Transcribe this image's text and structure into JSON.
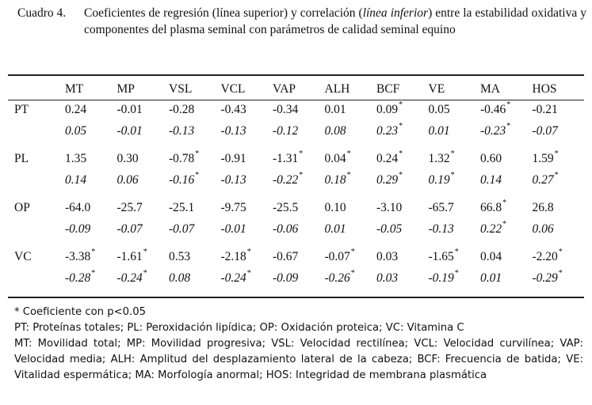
{
  "caption": {
    "label": "Cuadro 4.",
    "text_parts": [
      "Coeficientes de regresión (línea superior) y correlación (",
      "línea inferior",
      ") entre la estabilidad oxidativa y componentes del plasma seminal con parámetros de calidad seminal equino"
    ]
  },
  "table": {
    "columns": [
      "MT",
      "MP",
      "VSL",
      "VCL",
      "VAP",
      "ALH",
      "BCF",
      "VE",
      "MA",
      "HOS"
    ],
    "rows": [
      {
        "label": "PT",
        "regression": [
          [
            "0.24",
            ""
          ],
          [
            "-0.01",
            ""
          ],
          [
            "-0.28",
            ""
          ],
          [
            "-0.43",
            ""
          ],
          [
            "-0.34",
            ""
          ],
          [
            "0.01",
            ""
          ],
          [
            "0.09",
            "*"
          ],
          [
            "0.05",
            ""
          ],
          [
            "-0.46",
            "*"
          ],
          [
            "-0.21",
            ""
          ]
        ],
        "correlation": [
          [
            "0.05",
            ""
          ],
          [
            "-0.01",
            ""
          ],
          [
            "-0.13",
            ""
          ],
          [
            "-0.13",
            ""
          ],
          [
            "-0.12",
            ""
          ],
          [
            "0.08",
            ""
          ],
          [
            "0.23",
            "*"
          ],
          [
            "0.01",
            ""
          ],
          [
            "-0.23",
            "*"
          ],
          [
            "-0.07",
            ""
          ]
        ]
      },
      {
        "label": "PL",
        "regression": [
          [
            "1.35",
            ""
          ],
          [
            "0.30",
            ""
          ],
          [
            "-0.78",
            "*"
          ],
          [
            "-0.91",
            ""
          ],
          [
            "-1.31",
            "*"
          ],
          [
            "0.04",
            "*"
          ],
          [
            "0.24",
            "*"
          ],
          [
            "1.32",
            "*"
          ],
          [
            "0.60",
            ""
          ],
          [
            "1.59",
            "*"
          ]
        ],
        "correlation": [
          [
            "0.14",
            ""
          ],
          [
            "0.06",
            ""
          ],
          [
            "-0.16",
            "*"
          ],
          [
            "-0.13",
            ""
          ],
          [
            "-0.22",
            "*"
          ],
          [
            "0.18",
            "*"
          ],
          [
            "0.29",
            "*"
          ],
          [
            "0.19",
            "*"
          ],
          [
            "0.14",
            ""
          ],
          [
            "0.27",
            "*"
          ]
        ]
      },
      {
        "label": "OP",
        "regression": [
          [
            "-64.0",
            ""
          ],
          [
            "-25.7",
            ""
          ],
          [
            "-25.1",
            ""
          ],
          [
            "-9.75",
            ""
          ],
          [
            "-25.5",
            ""
          ],
          [
            "0.10",
            ""
          ],
          [
            "-3.10",
            ""
          ],
          [
            "-65.7",
            ""
          ],
          [
            "66.8",
            "*"
          ],
          [
            "26.8",
            ""
          ]
        ],
        "correlation": [
          [
            "-0.09",
            ""
          ],
          [
            "-0.07",
            ""
          ],
          [
            "-0.07",
            ""
          ],
          [
            "-0.01",
            ""
          ],
          [
            "-0.06",
            ""
          ],
          [
            "0.01",
            ""
          ],
          [
            "-0.05",
            ""
          ],
          [
            "-0.13",
            ""
          ],
          [
            "0.22",
            "*"
          ],
          [
            "0.06",
            ""
          ]
        ]
      },
      {
        "label": "VC",
        "regression": [
          [
            "-3.38",
            "*"
          ],
          [
            "-1.61",
            "*"
          ],
          [
            "0.53",
            ""
          ],
          [
            "-2.18",
            "*"
          ],
          [
            "-0.67",
            ""
          ],
          [
            "-0.07",
            "*"
          ],
          [
            "0.03",
            ""
          ],
          [
            "-1.65",
            "*"
          ],
          [
            "0.04",
            ""
          ],
          [
            "-2.20",
            "*"
          ]
        ],
        "correlation": [
          [
            "-0.28",
            "*"
          ],
          [
            "-0.24",
            "*"
          ],
          [
            "0.08",
            ""
          ],
          [
            "-0.24",
            "*"
          ],
          [
            "-0.09",
            ""
          ],
          [
            "-0.26",
            "*"
          ],
          [
            "0.03",
            ""
          ],
          [
            "-0.19",
            "*"
          ],
          [
            "0.01",
            ""
          ],
          [
            "-0.29",
            "*"
          ]
        ]
      }
    ]
  },
  "notes": [
    "* Coeficiente con p<0.05",
    "PT: Proteínas totales; PL: Peroxidación lipídica; OP: Oxidación proteica; VC: Vitamina C",
    "MT: Movilidad total; MP: Movilidad progresiva; VSL: Velocidad rectilínea; VCL: Velocidad curvilínea; VAP: Velocidad media; ALH: Amplitud del desplazamiento lateral de la cabeza; BCF: Frecuencia de batida; VE: Vitalidad espermática; MA: Morfología anormal; HOS: Integridad de membrana plasmática"
  ]
}
